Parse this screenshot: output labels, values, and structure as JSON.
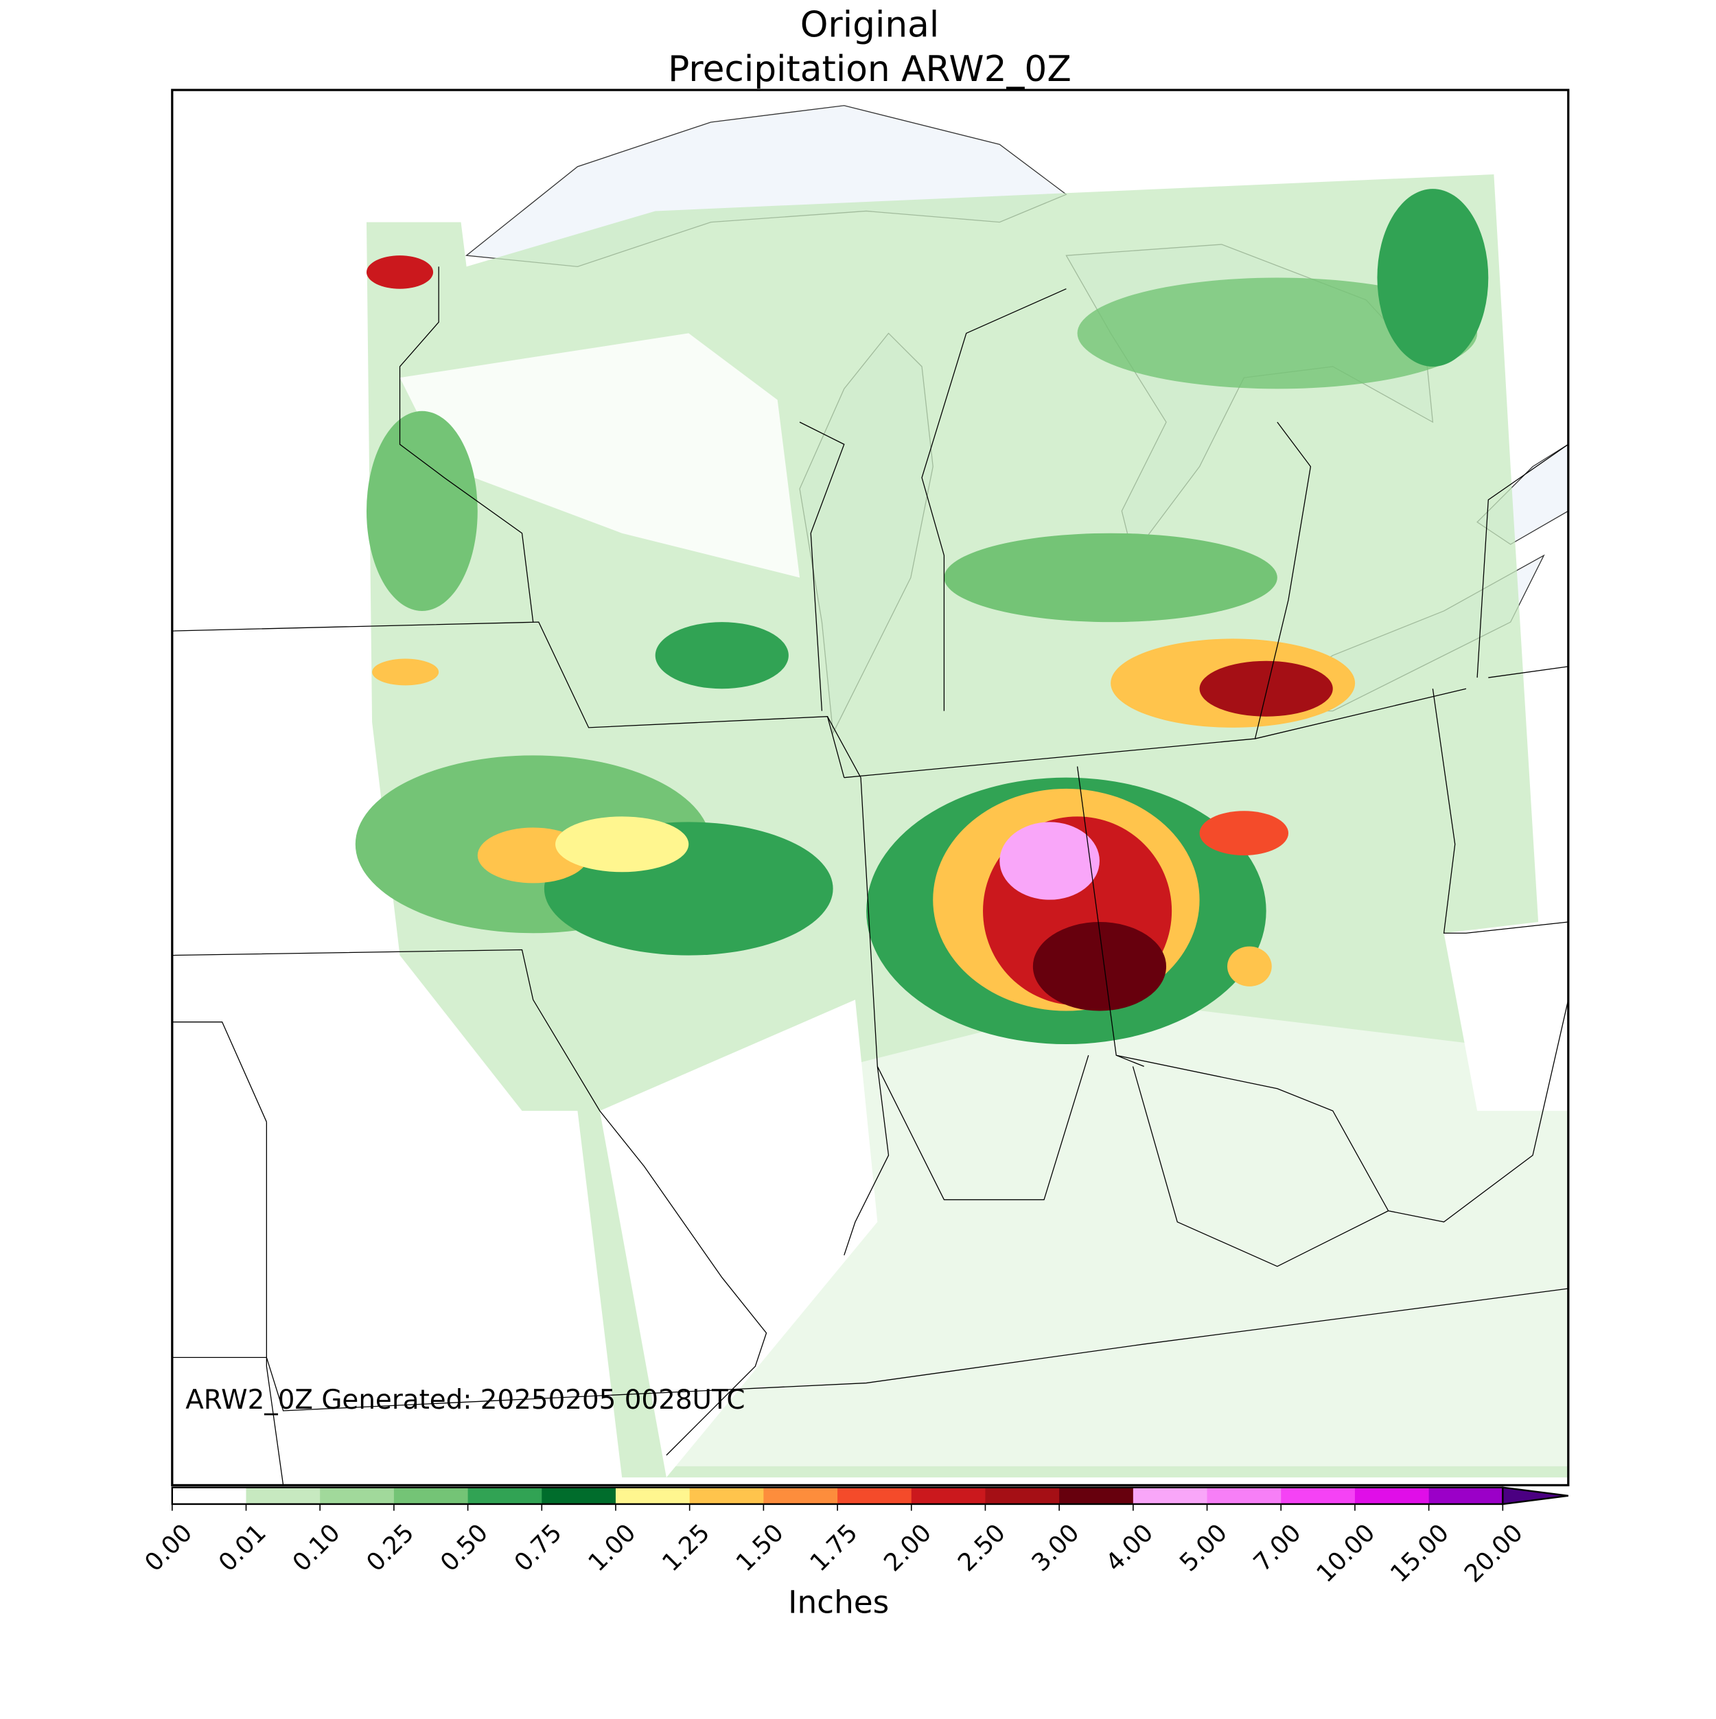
{
  "title": "Original",
  "subtitle": "Precipitation ARW2_0Z",
  "annotation": "ARW2_0Z Generated: 20250205 0028UTC",
  "colorbar": {
    "label": "Inches",
    "ticks": [
      {
        "value": 0,
        "label": "0.00"
      },
      {
        "value": 0.01,
        "label": "0.01"
      },
      {
        "value": 0.1,
        "label": "0.10"
      },
      {
        "value": 0.25,
        "label": "0.25"
      },
      {
        "value": 0.5,
        "label": "0.50"
      },
      {
        "value": 0.75,
        "label": "0.75"
      },
      {
        "value": 1,
        "label": "1.00"
      },
      {
        "value": 1.25,
        "label": "1.25"
      },
      {
        "value": 1.5,
        "label": "1.50"
      },
      {
        "value": 1.75,
        "label": "1.75"
      },
      {
        "value": 2,
        "label": "2.00"
      },
      {
        "value": 2.5,
        "label": "2.50"
      },
      {
        "value": 3,
        "label": "3.00"
      },
      {
        "value": 4,
        "label": "4.00"
      },
      {
        "value": 5,
        "label": "5.00"
      },
      {
        "value": 7,
        "label": "7.00"
      },
      {
        "value": 10,
        "label": "10.00"
      },
      {
        "value": 15,
        "label": "15.00"
      },
      {
        "value": 20,
        "label": "20.00"
      }
    ],
    "colors": [
      "#ffffff",
      "#c7e9c0",
      "#a1d99b",
      "#74c476",
      "#31a354",
      "#006d2c",
      "#fff68f",
      "#ffc44c",
      "#fd8d3c",
      "#f44b2a",
      "#cb181d",
      "#a50f15",
      "#67000d",
      "#f9a6f9",
      "#f77ff7",
      "#f542f5",
      "#e00ee8",
      "#9b00c8"
    ],
    "extend_color": "#4b0082"
  }
}
